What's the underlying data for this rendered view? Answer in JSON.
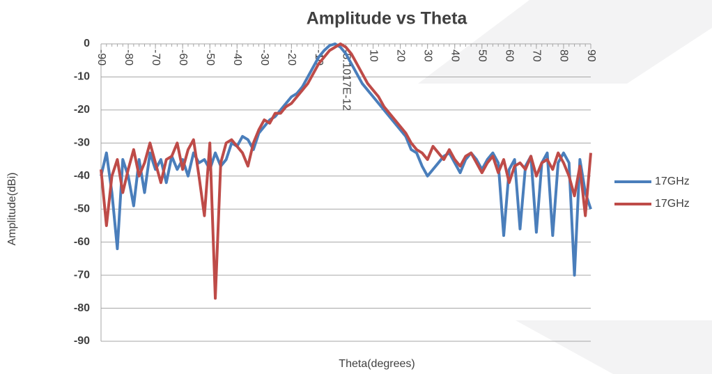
{
  "chart_data": {
    "type": "line",
    "title": "Amplitude vs Theta",
    "x_label": "Theta(degrees)",
    "y_label": "Amplitude(dBi)",
    "x": [
      -90,
      -88,
      -86,
      -84,
      -82,
      -80,
      -78,
      -76,
      -74,
      -72,
      -70,
      -68,
      -66,
      -64,
      -62,
      -60,
      -58,
      -56,
      -54,
      -52,
      -50,
      -48,
      -46,
      -44,
      -42,
      -40,
      -38,
      -36,
      -34,
      -32,
      -30,
      -28,
      -26,
      -24,
      -22,
      -20,
      -18,
      -16,
      -14,
      -12,
      -10,
      -8,
      -6,
      -4,
      -2,
      0,
      2,
      4,
      6,
      8,
      10,
      12,
      14,
      16,
      18,
      20,
      22,
      24,
      26,
      28,
      30,
      32,
      34,
      36,
      38,
      40,
      42,
      44,
      46,
      48,
      50,
      52,
      54,
      56,
      58,
      60,
      62,
      64,
      66,
      68,
      70,
      72,
      74,
      76,
      78,
      80,
      82,
      84,
      86,
      88,
      90
    ],
    "series": [
      {
        "name": "17GHz",
        "color": "#4a7ebb",
        "values": [
          -40,
          -33,
          -45,
          -62,
          -35,
          -40,
          -49,
          -35,
          -45,
          -33,
          -38,
          -35,
          -42,
          -34,
          -38,
          -35,
          -40,
          -33,
          -36,
          -35,
          -38,
          -33,
          -37,
          -35,
          -30,
          -31,
          -28,
          -29,
          -32,
          -27,
          -25,
          -23,
          -22,
          -20,
          -18,
          -16,
          -15,
          -13,
          -10,
          -7,
          -4,
          -2,
          -0.5,
          0,
          -1,
          -3,
          -6,
          -9,
          -12,
          -14,
          -16,
          -18,
          -20,
          -22,
          -24,
          -26,
          -28,
          -32,
          -33,
          -37,
          -40,
          -38,
          -36,
          -34,
          -33,
          -36,
          -39,
          -35,
          -33,
          -35,
          -38,
          -35,
          -33,
          -36,
          -58,
          -38,
          -35,
          -56,
          -37,
          -34,
          -57,
          -36,
          -33,
          -58,
          -36,
          -33,
          -36,
          -70,
          -35,
          -45,
          -50
        ]
      },
      {
        "name": "17GHz",
        "color": "#be4b48",
        "values": [
          -38,
          -55,
          -40,
          -35,
          -45,
          -38,
          -32,
          -40,
          -36,
          -30,
          -36,
          -42,
          -35,
          -34,
          -30,
          -38,
          -32,
          -29,
          -40,
          -52,
          -30,
          -77,
          -36,
          -30,
          -29,
          -31,
          -33,
          -37,
          -30,
          -26,
          -23,
          -24,
          -21,
          -21,
          -19,
          -18,
          -16,
          -14,
          -12,
          -9,
          -6,
          -4,
          -2,
          -1,
          0,
          -1,
          -3,
          -6,
          -9,
          -12,
          -14,
          -16,
          -19,
          -21,
          -23,
          -25,
          -27,
          -30,
          -32,
          -33,
          -35,
          -31,
          -33,
          -35,
          -32,
          -35,
          -37,
          -34,
          -33,
          -36,
          -39,
          -36,
          -34,
          -39,
          -35,
          -42,
          -37,
          -36,
          -38,
          -34,
          -40,
          -36,
          -35,
          -38,
          -33,
          -36,
          -40,
          -46,
          -37,
          -52,
          -33
        ]
      }
    ],
    "xlim": [
      -90,
      90
    ],
    "xticks": [
      -90,
      -80,
      -70,
      -60,
      -50,
      -40,
      -30,
      -20,
      -10,
      {
        "value": 0,
        "label": "-5.1017E-12"
      },
      10,
      20,
      30,
      40,
      50,
      60,
      70,
      80,
      90
    ],
    "ylim": [
      -90,
      0
    ],
    "yticks": [
      0,
      -10,
      -20,
      -30,
      -40,
      -50,
      -60,
      -70,
      -80,
      -90
    ],
    "grid": true,
    "legend": "right"
  }
}
